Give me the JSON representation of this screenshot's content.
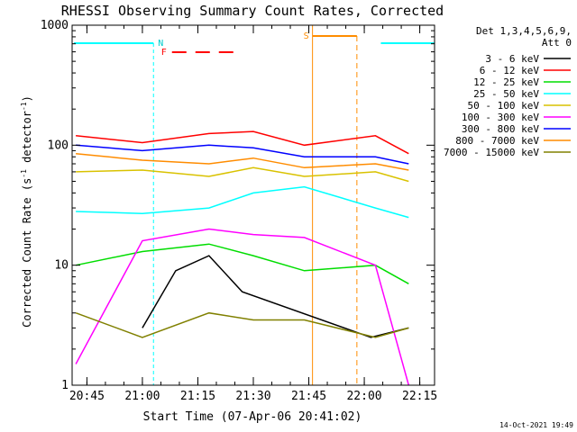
{
  "chart_data": {
    "type": "line",
    "title": "RHESSI Observing Summary Count Rates, Corrected",
    "xlabel": "Start Time (07-Apr-06 20:41:02)",
    "ylabel_main": "Corrected Count Rate (s",
    "ylabel_sup1": "-1",
    "ylabel_mid": " detector",
    "ylabel_sup2": "-1",
    "ylabel_end": ")",
    "yscale": "log",
    "ylim": [
      1,
      1000
    ],
    "xlim": [
      "20:41",
      "22:19"
    ],
    "x_ticks": [
      "20:45",
      "21:00",
      "21:15",
      "21:30",
      "21:45",
      "22:00",
      "22:15"
    ],
    "y_ticks": [
      "1",
      "10",
      "100",
      "1000"
    ],
    "legend_header_1": "Det 1,3,4,5,6,9,",
    "legend_header_2": "Att 0",
    "legend_position": "right",
    "markers": {
      "n_label": "N",
      "f_label": "F",
      "s_label": "S",
      "night_intervals": [
        [
          "20:41",
          "21:03"
        ],
        [
          "22:04",
          "22:19"
        ]
      ],
      "flag_intervals": [
        [
          "21:08",
          "21:26"
        ]
      ],
      "saa_intervals": [
        [
          "21:46",
          "21:58"
        ]
      ]
    },
    "series": [
      {
        "name": "3 - 6 keV",
        "color": "#000000",
        "values": [
          [
            21.0,
            3
          ],
          [
            21.15,
            9
          ],
          [
            21.3,
            12
          ],
          [
            21.45,
            6
          ],
          [
            22.03,
            2.5
          ],
          [
            22.2,
            3
          ]
        ]
      },
      {
        "name": "6 - 12 keV",
        "color": "#ff0000",
        "values": [
          [
            20.7,
            120
          ],
          [
            21.0,
            105
          ],
          [
            21.3,
            125
          ],
          [
            21.5,
            130
          ],
          [
            21.73,
            100
          ],
          [
            22.05,
            120
          ],
          [
            22.2,
            85
          ]
        ]
      },
      {
        "name": "12 - 25 keV",
        "color": "#00dd00",
        "values": [
          [
            20.7,
            10
          ],
          [
            21.0,
            13
          ],
          [
            21.3,
            15
          ],
          [
            21.5,
            12
          ],
          [
            21.73,
            9
          ],
          [
            22.05,
            10
          ],
          [
            22.2,
            7
          ]
        ]
      },
      {
        "name": "25 - 50 keV",
        "color": "#00ffff",
        "values": [
          [
            20.7,
            28
          ],
          [
            21.0,
            27
          ],
          [
            21.3,
            30
          ],
          [
            21.5,
            40
          ],
          [
            21.73,
            45
          ],
          [
            22.05,
            30
          ],
          [
            22.2,
            25
          ]
        ]
      },
      {
        "name": "50 - 100 keV",
        "color": "#d9c200",
        "values": [
          [
            20.7,
            60
          ],
          [
            21.0,
            62
          ],
          [
            21.3,
            55
          ],
          [
            21.5,
            65
          ],
          [
            21.73,
            55
          ],
          [
            22.05,
            60
          ],
          [
            22.2,
            50
          ]
        ]
      },
      {
        "name": "100 - 300 keV",
        "color": "#ff00ff",
        "values": [
          [
            20.7,
            1.5
          ],
          [
            21.0,
            16
          ],
          [
            21.3,
            20
          ],
          [
            21.5,
            18
          ],
          [
            21.73,
            17
          ],
          [
            22.05,
            10
          ],
          [
            22.2,
            1
          ]
        ]
      },
      {
        "name": "300 - 800 keV",
        "color": "#0000ff",
        "values": [
          [
            20.7,
            100
          ],
          [
            21.0,
            90
          ],
          [
            21.3,
            100
          ],
          [
            21.5,
            95
          ],
          [
            21.73,
            80
          ],
          [
            22.05,
            80
          ],
          [
            22.2,
            70
          ]
        ]
      },
      {
        "name": "800 - 7000 keV",
        "color": "#ff8c00",
        "values": [
          [
            20.7,
            85
          ],
          [
            21.0,
            75
          ],
          [
            21.3,
            70
          ],
          [
            21.5,
            78
          ],
          [
            21.73,
            65
          ],
          [
            22.05,
            70
          ],
          [
            22.2,
            62
          ]
        ]
      },
      {
        "name": "7000 - 15000 keV",
        "color": "#808000",
        "values": [
          [
            20.7,
            4
          ],
          [
            21.0,
            2.5
          ],
          [
            21.3,
            4
          ],
          [
            21.5,
            3.5
          ],
          [
            21.73,
            3.5
          ],
          [
            22.05,
            2.5
          ],
          [
            22.2,
            3
          ]
        ]
      }
    ]
  },
  "footer": {
    "timestamp": "14-Oct-2021 19:49"
  }
}
